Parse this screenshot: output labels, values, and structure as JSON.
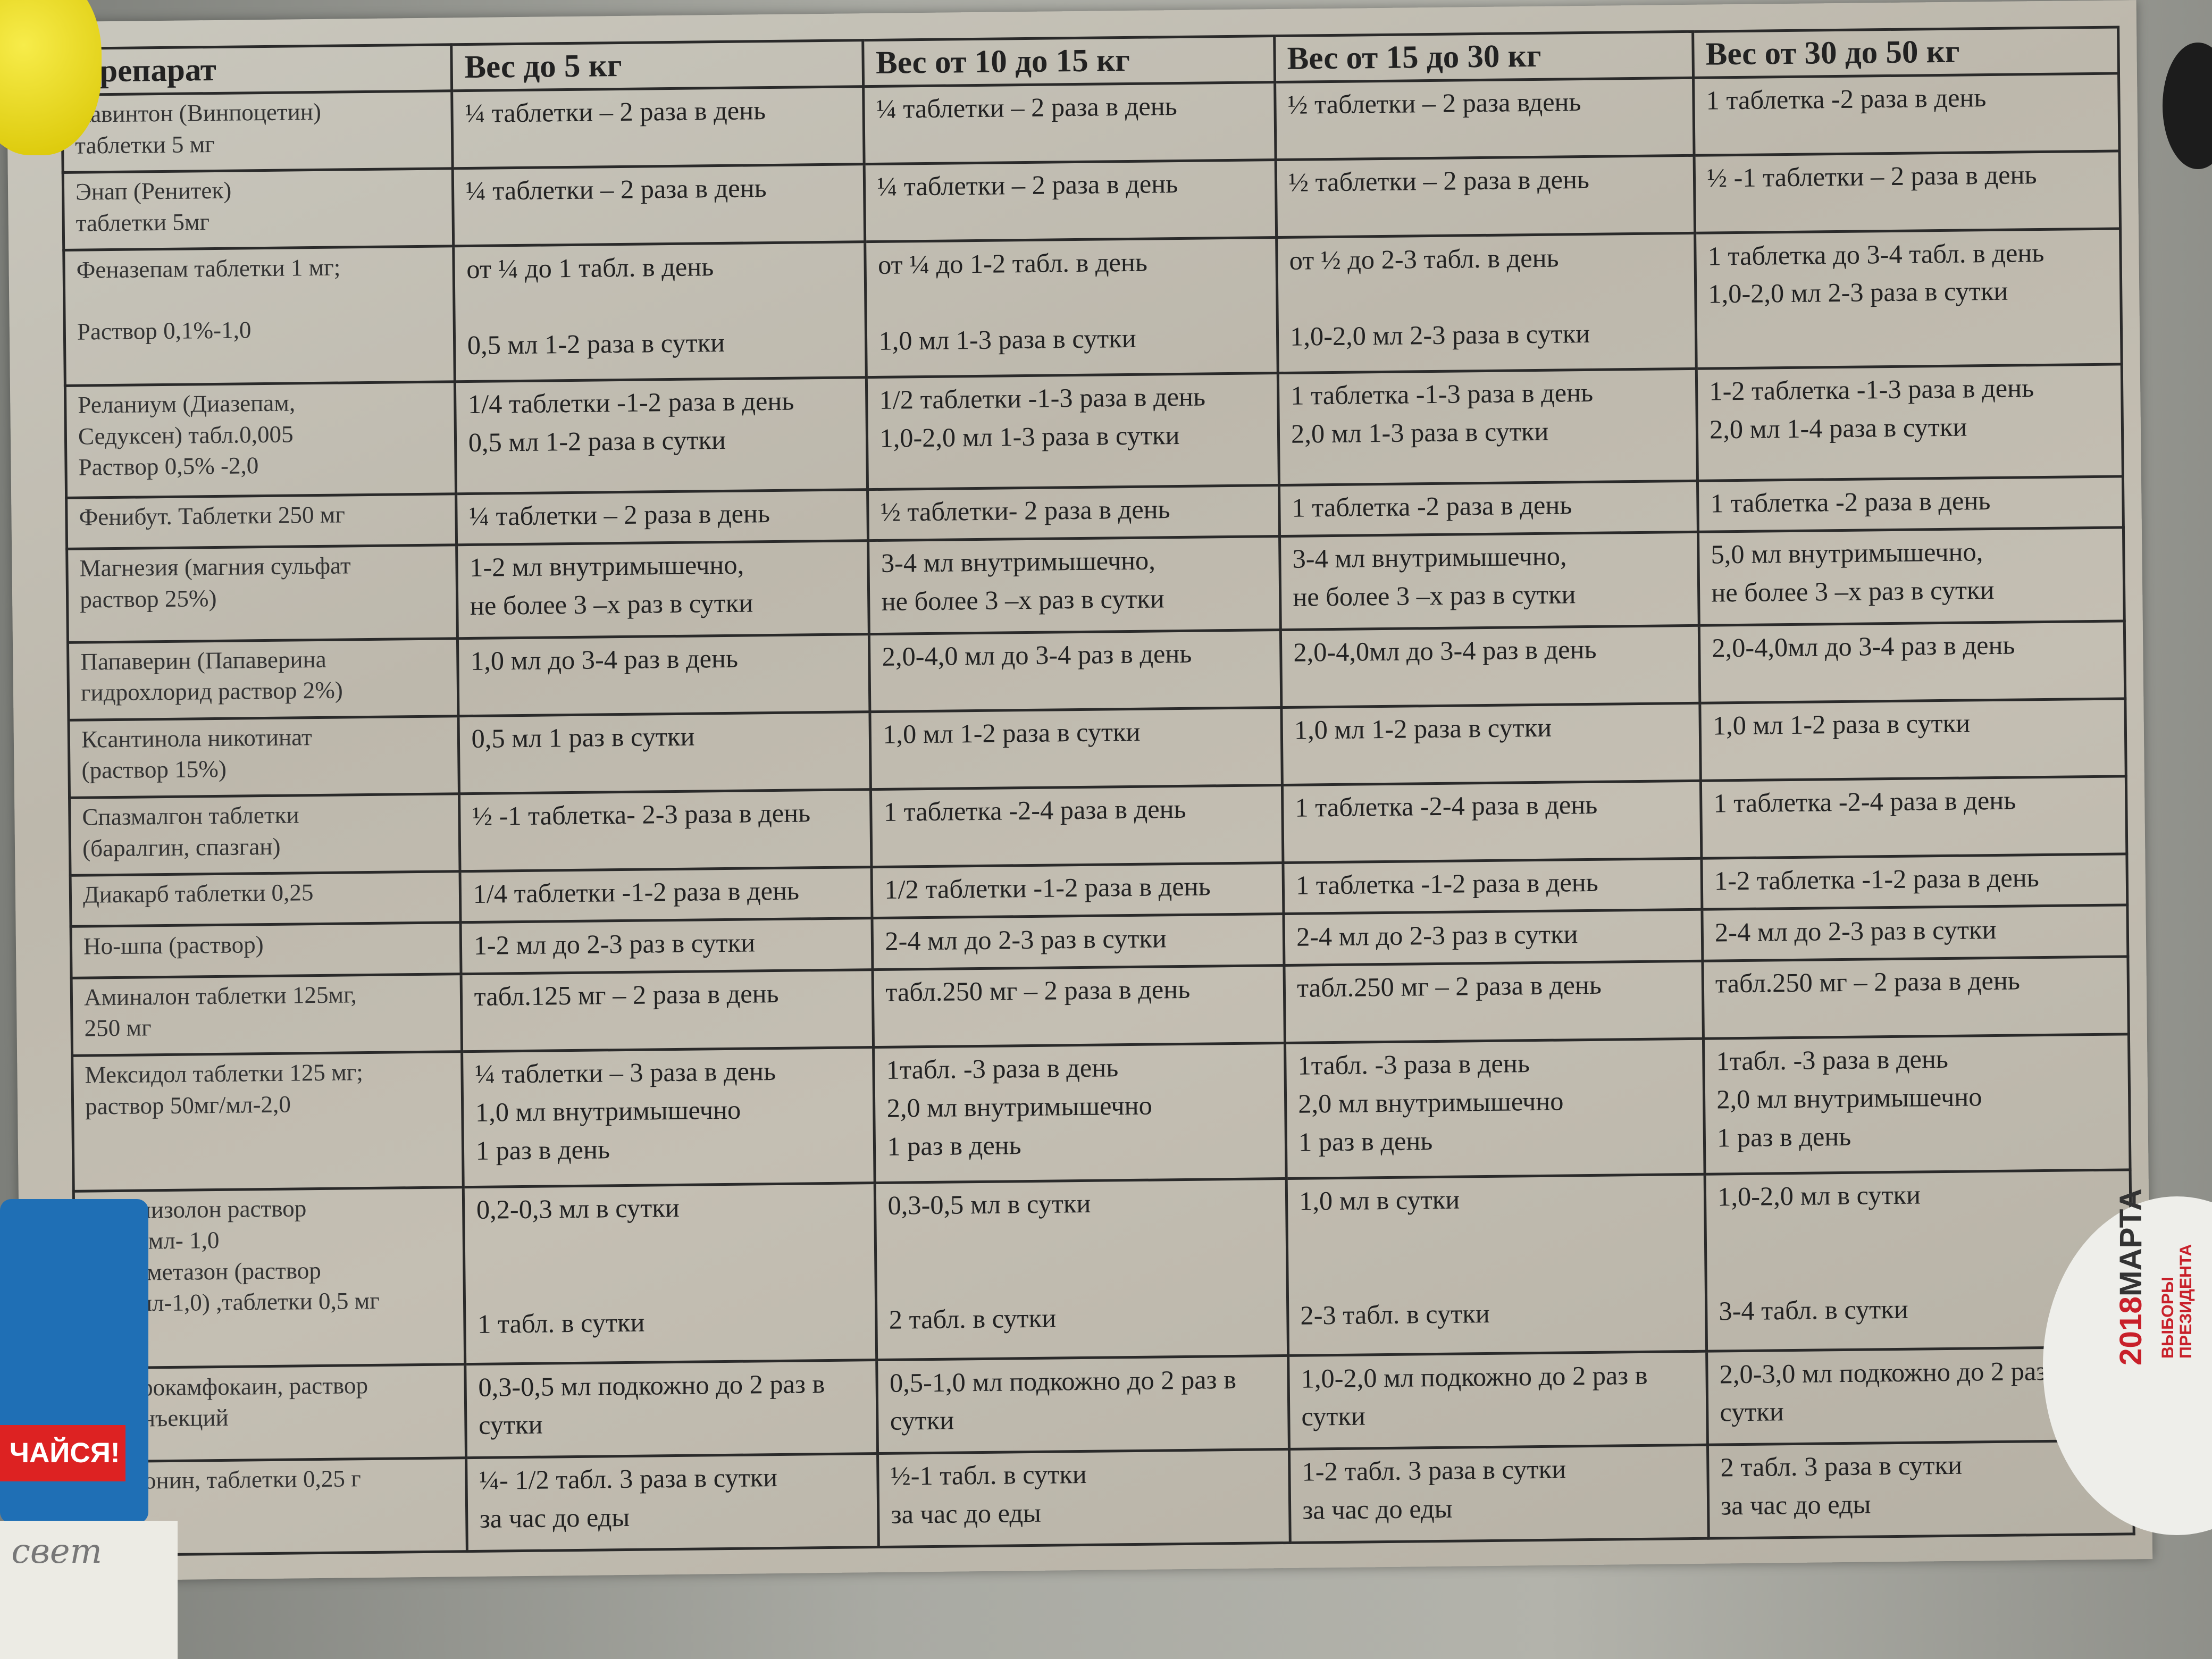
{
  "table": {
    "headers": [
      "Препарат",
      "Вес до 5 кг",
      "Вес от 10 до 15 кг",
      "Вес от 15 до 30 кг",
      "Вес от 30 до 50 кг"
    ],
    "rows": [
      [
        "Кавинтон (Винпоцетин)\nтаблетки 5 мг",
        "¼ таблетки – 2 раза в день",
        "¼ таблетки – 2 раза в день",
        "½ таблетки – 2 раза вдень",
        "1 таблетка -2 раза в день"
      ],
      [
        "Энап (Ренитек)\nтаблетки 5мг",
        "¼ таблетки – 2 раза в день",
        "¼ таблетки – 2 раза в день",
        "½ таблетки – 2 раза в день",
        "½ -1 таблетки – 2 раза в день"
      ],
      [
        "Феназепам таблетки 1 мг;\n\nРаствор 0,1%-1,0",
        "от ¼ до 1 табл. в день\n\n0,5 мл 1-2 раза в сутки",
        "от ¼ до 1-2 табл. в день\n\n1,0 мл 1-3 раза в сутки",
        "от ½ до 2-3 табл. в день\n\n1,0-2,0 мл 2-3 раза в сутки",
        "1 таблетка до 3-4 табл. в день\n1,0-2,0 мл 2-3 раза в сутки"
      ],
      [
        "Реланиум (Диазепам,\nСедуксен) табл.0,005\nРаствор 0,5% -2,0",
        "1/4 таблетки -1-2 раза в день\n0,5 мл 1-2 раза в сутки",
        "1/2 таблетки -1-3 раза в день\n1,0-2,0 мл 1-3 раза в сутки",
        "1 таблетка -1-3 раза в день\n2,0 мл 1-3 раза в сутки",
        "1-2 таблетка -1-3 раза в день\n2,0 мл 1-4 раза в сутки"
      ],
      [
        "Фенибут. Таблетки 250 мг",
        "¼ таблетки – 2 раза в день",
        "½ таблетки- 2 раза в день",
        "1 таблетка -2 раза в день",
        "1 таблетка -2 раза в день"
      ],
      [
        "Магнезия (магния сульфат\nраствор 25%)",
        "1-2 мл внутримышечно,\nне более 3 –х раз в сутки",
        "3-4 мл внутримышечно,\nне более 3 –х раз в сутки",
        "3-4 мл внутримышечно,\nне более 3 –х раз в сутки",
        "5,0 мл внутримышечно,\nне более 3 –х раз в сутки"
      ],
      [
        "Папаверин (Папаверина\nгидрохлорид раствор 2%)",
        "1,0 мл до 3-4 раз в день",
        "2,0-4,0 мл до 3-4 раз в день",
        "2,0-4,0мл до 3-4 раз в день",
        "2,0-4,0мл до 3-4 раз в день"
      ],
      [
        "Ксантинола никотинат\n(раствор 15%)",
        "0,5 мл 1 раз в сутки",
        "1,0 мл 1-2 раза в сутки",
        "1,0 мл 1-2 раза в сутки",
        "1,0 мл 1-2 раза в сутки"
      ],
      [
        "Спазмалгон таблетки\n(баралгин, спазган)",
        "½ -1 таблетка- 2-3 раза в день",
        "1 таблетка -2-4 раза в день",
        "1 таблетка -2-4 раза в день",
        "1 таблетка -2-4 раза в день"
      ],
      [
        "Диакарб таблетки 0,25",
        "1/4 таблетки -1-2 раза в день",
        "1/2 таблетки -1-2 раза в день",
        "1 таблетка -1-2 раза в день",
        "1-2 таблетка -1-2 раза в день"
      ],
      [
        "Но-шпа (раствор)",
        "1-2 мл до 2-3 раз в сутки",
        "2-4 мл до 2-3 раз в сутки",
        "2-4 мл до 2-3 раз в сутки",
        "2-4 мл до 2-3 раз в сутки"
      ],
      [
        "Аминалон таблетки 125мг,\n250 мг",
        "табл.125 мг – 2 раза в день",
        "табл.250 мг – 2 раза в день",
        "табл.250 мг – 2 раза в день",
        "табл.250 мг – 2 раза в день"
      ],
      [
        "Мексидол таблетки 125 мг;\nраствор 50мг/мл-2,0",
        "¼ таблетки – 3 раза в день\n1,0 мл внутримышечно\n1 раз в день",
        "1табл. -3 раза в день\n2,0 мл внутримышечно\n1 раз в день",
        "1табл. -3 раза в день\n2,0 мл внутримышечно\n1 раз в день",
        "1табл. -3 раза в день\n2,0 мл внутримышечно\n1 раз в день"
      ],
      [
        "Преднизолон раствор\n30 мг/мл- 1,0\nДексаметазон (раствор\n1 мг/мл-1,0) ,таблетки 0,5 мг",
        "0,2-0,3 мл в сутки\n\n\n1 табл. в сутки",
        "0,3-0,5 мл в сутки\n\n\n2 табл. в сутки",
        "1,0 мл в сутки\n\n\n2-3 табл. в сутки",
        "1,0-2,0 мл в сутки\n\n\n3-4 табл. в сутки"
      ],
      [
        "Сульфокамфокаин, раствор\nдля инъекций",
        "0,3-0,5 мл подкожно до 2 раз в сутки",
        "0,5-1,0 мл подкожно до 2 раз в сутки",
        "1,0-2,0 мл подкожно до 2 раз в сутки",
        "2,0-3,0 мл подкожно до 2 раз в сутки"
      ],
      [
        "Метионин, таблетки 0,25 г",
        "¼- 1/2 табл. 3 раза в сутки\nза час до еды",
        "½-1 табл. в сутки\nза час до еды",
        "1-2 табл. 3 раза в сутки\nза час до еды",
        "2 табл. 3 раза в сутки\nза час до еды"
      ]
    ]
  },
  "card": {
    "text": "ЧАЙСЯ!"
  },
  "note": {
    "text": "свет"
  },
  "badge": {
    "year": "2018",
    "month": "МАРТА",
    "sub": "ВЫБОРЫ\nПРЕЗИДЕНТА"
  }
}
